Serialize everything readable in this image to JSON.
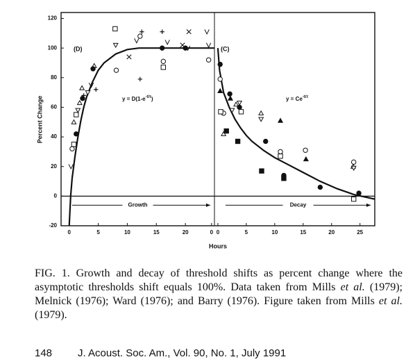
{
  "chart_data": [
    {
      "type": "scatter",
      "panel_label": "(D)",
      "ylabel": "Percent Change",
      "xlabel": "Hours",
      "equation": {
        "base": "y = D(1-e",
        "exponent": "-t/τ",
        "tail": ")"
      },
      "arrow_label": "Growth",
      "xlim": [
        -1.4,
        25
      ],
      "xticks": [
        0,
        5,
        10,
        15,
        20,
        {
          "value": 24.5,
          "label": "0"
        }
      ],
      "ylim": [
        -20,
        124
      ],
      "yticks": [
        120,
        100,
        80,
        60,
        40,
        20,
        0,
        -20
      ],
      "curve": {
        "x": [
          0,
          0.25,
          0.5,
          1,
          1.5,
          2,
          2.5,
          3,
          4,
          5,
          6,
          8,
          10,
          12,
          16,
          20,
          25
        ],
        "values": [
          -20,
          0,
          12,
          27,
          40,
          51,
          60,
          67,
          77,
          85,
          90,
          96,
          99,
          100,
          100,
          100,
          100
        ]
      },
      "series": [
        {
          "marker": "square-open",
          "x": [
            7.9,
            16.2,
            1.2,
            0.8
          ],
          "values": [
            113,
            87,
            55,
            35
          ]
        },
        {
          "marker": "circle-open",
          "x": [
            8.1,
            12.2,
            16.2,
            24,
            0.5
          ],
          "values": [
            85,
            108,
            91,
            92,
            32
          ]
        },
        {
          "marker": "plus",
          "x": [
            12.5,
            16,
            12.2,
            4.6,
            2.5
          ],
          "values": [
            111,
            111,
            79,
            72,
            68
          ]
        },
        {
          "marker": "cross",
          "x": [
            20.6,
            10.3,
            19.5
          ],
          "values": [
            111,
            94,
            102
          ]
        },
        {
          "marker": "v",
          "x": [
            11.6,
            16.9,
            23.7,
            20.4,
            24,
            3.8,
            0.3
          ],
          "values": [
            105,
            104,
            111,
            100,
            102,
            75,
            20
          ]
        },
        {
          "marker": "triangle-open",
          "x": [
            2.2,
            4.3,
            1.8,
            0.8
          ],
          "values": [
            73,
            88,
            63,
            50
          ]
        },
        {
          "marker": "circle-filled",
          "x": [
            16,
            20,
            4.1,
            2.3,
            1.2
          ],
          "values": [
            100,
            100,
            86,
            66,
            42
          ]
        },
        {
          "marker": "triangle-down-open",
          "x": [
            8,
            1.5,
            3.2
          ],
          "values": [
            102,
            58,
            70
          ]
        }
      ]
    },
    {
      "type": "scatter",
      "panel_label": "(C)",
      "equation": {
        "base": "y = Ce",
        "exponent": "-t/τ"
      },
      "arrow_label": "Decay",
      "xlim": [
        -0.6,
        27.6
      ],
      "xticks": [
        0,
        5,
        10,
        15,
        20,
        25
      ],
      "ylim": [
        -20,
        124
      ],
      "curve": {
        "x": [
          0,
          0.3,
          1,
          2,
          3,
          4,
          5,
          6,
          8,
          10,
          12,
          15,
          18,
          21,
          24,
          27.6
        ],
        "values": [
          100,
          85,
          70,
          60,
          52,
          46,
          41,
          37,
          31,
          26,
          22,
          16,
          10,
          5,
          1,
          -2
        ]
      },
      "series": [
        {
          "marker": "circle-filled",
          "x": [
            0.4,
            2.1,
            3.8,
            8.4,
            11.6,
            18,
            24.8
          ],
          "values": [
            89,
            69,
            60,
            37,
            14,
            6,
            2
          ]
        },
        {
          "marker": "circle-open",
          "x": [
            0.4,
            1,
            11,
            15.4,
            23.9
          ],
          "values": [
            79,
            56,
            30,
            31,
            23
          ]
        },
        {
          "marker": "triangle-filled",
          "x": [
            0.4,
            2.2,
            11,
            15.5
          ],
          "values": [
            71,
            66,
            51,
            25
          ]
        },
        {
          "marker": "triangle-open",
          "x": [
            7.6,
            1,
            23.8,
            3.2
          ],
          "values": [
            56,
            42,
            20,
            62
          ]
        },
        {
          "marker": "square-filled",
          "x": [
            1.5,
            3.5,
            7.7,
            11.6
          ],
          "values": [
            44,
            37,
            17,
            12
          ]
        },
        {
          "marker": "square-open",
          "x": [
            0.5,
            4.1,
            11,
            23.9
          ],
          "values": [
            57,
            57,
            27,
            -2
          ]
        },
        {
          "marker": "triangle-down-open",
          "x": [
            3.8,
            7.6,
            23.9,
            2.5
          ],
          "values": [
            63,
            52,
            19,
            58
          ]
        }
      ]
    }
  ],
  "caption": [
    "FIG. 1. Growth and decay of threshold shifts as percent change where the asymptotic thresholds shift equals 100%. Data taken from Mills ",
    "et al.",
    " (1979); Melnick (1976); Ward (1976); and Barry (1976). Figure taken from Mills ",
    "et al.",
    " (1979)."
  ],
  "footer": {
    "page": "148",
    "journal": "J. Acoust. Soc. Am., Vol. 90, No. 1, July 1991"
  }
}
